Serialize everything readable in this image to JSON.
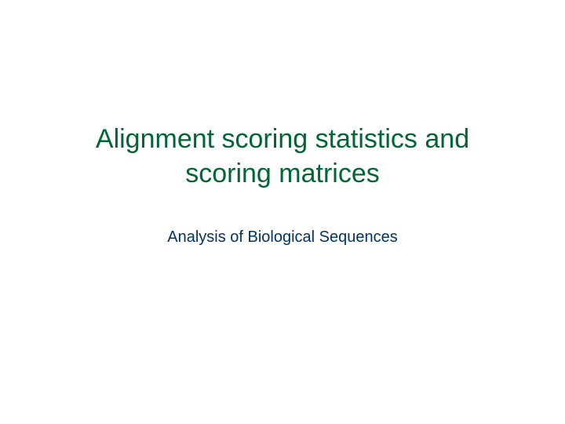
{
  "slide": {
    "title": "Alignment scoring statistics and scoring matrices",
    "subtitle": "Analysis of Biological Sequences",
    "title_color": "#006633",
    "subtitle_color": "#003366",
    "background_color": "#ffffff",
    "title_fontsize": 34,
    "subtitle_fontsize": 20
  }
}
